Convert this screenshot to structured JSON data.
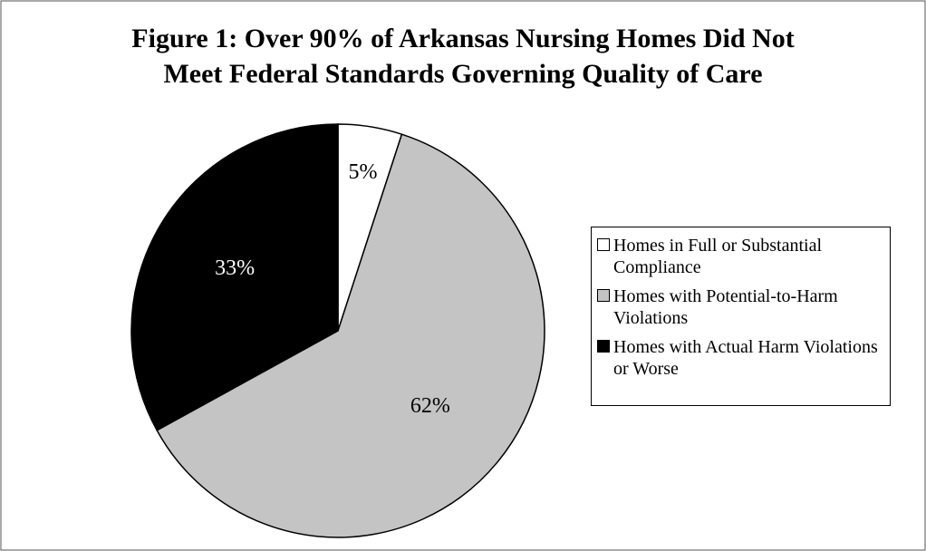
{
  "chart_data": {
    "type": "pie",
    "title": [
      "Figure 1:  Over 90% of Arkansas Nursing Homes Did Not",
      "Meet Federal Standards Governing Quality of Care"
    ],
    "categories": [
      "Homes in Full or Substantial Compliance",
      "Homes with Potential-to-Harm Violations",
      "Homes with Actual Harm Violations or Worse"
    ],
    "values": [
      5,
      62,
      33
    ],
    "value_labels": [
      "5%",
      "62%",
      "33%"
    ],
    "colors": [
      "#ffffff",
      "#c4c4c4",
      "#000000"
    ],
    "legend": "right"
  }
}
